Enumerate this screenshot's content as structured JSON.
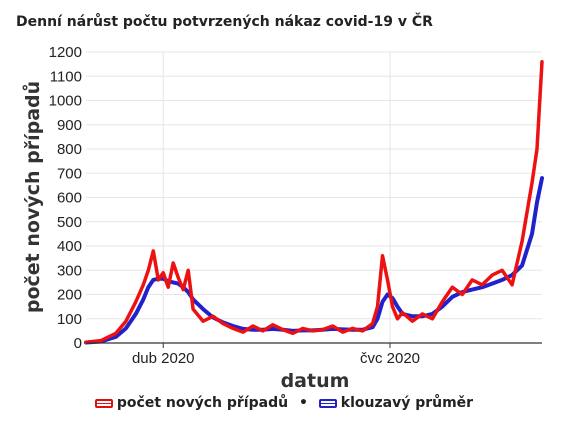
{
  "chart_data": {
    "type": "line",
    "title": "Denní nárůst počtu potvrzených nákaz covid-19 v ČR",
    "xlabel": "datum",
    "ylabel": "počet nových případů",
    "ylim": [
      0,
      1200
    ],
    "yticks": [
      0,
      100,
      200,
      300,
      400,
      500,
      600,
      700,
      800,
      900,
      1000,
      1100,
      1200
    ],
    "xticks": [
      {
        "date": "2020-04-01",
        "label": "dub 2020"
      },
      {
        "date": "2020-07-01",
        "label": "čvc 2020"
      }
    ],
    "xlim": [
      "2020-03-01",
      "2020-08-31"
    ],
    "grid": true,
    "legend_position": "bottom",
    "x": [
      "2020-03-01",
      "2020-03-07",
      "2020-03-13",
      "2020-03-17",
      "2020-03-21",
      "2020-03-24",
      "2020-03-26",
      "2020-03-28",
      "2020-03-30",
      "2020-04-01",
      "2020-04-03",
      "2020-04-05",
      "2020-04-07",
      "2020-04-09",
      "2020-04-11",
      "2020-04-13",
      "2020-04-17",
      "2020-04-21",
      "2020-04-25",
      "2020-04-29",
      "2020-05-03",
      "2020-05-07",
      "2020-05-11",
      "2020-05-15",
      "2020-05-19",
      "2020-05-23",
      "2020-05-27",
      "2020-05-31",
      "2020-06-04",
      "2020-06-08",
      "2020-06-12",
      "2020-06-16",
      "2020-06-20",
      "2020-06-24",
      "2020-06-26",
      "2020-06-28",
      "2020-06-30",
      "2020-07-02",
      "2020-07-04",
      "2020-07-06",
      "2020-07-10",
      "2020-07-14",
      "2020-07-18",
      "2020-07-22",
      "2020-07-26",
      "2020-07-30",
      "2020-08-03",
      "2020-08-07",
      "2020-08-11",
      "2020-08-15",
      "2020-08-19",
      "2020-08-23",
      "2020-08-27",
      "2020-08-29",
      "2020-08-31"
    ],
    "series": [
      {
        "name": "počet nových případů",
        "color": "#ee1111",
        "values": [
          3,
          10,
          40,
          90,
          170,
          240,
          300,
          380,
          260,
          290,
          230,
          330,
          270,
          220,
          300,
          140,
          90,
          110,
          80,
          60,
          45,
          70,
          50,
          75,
          55,
          40,
          60,
          50,
          55,
          70,
          45,
          60,
          50,
          80,
          150,
          360,
          260,
          150,
          100,
          125,
          90,
          120,
          100,
          170,
          230,
          200,
          260,
          240,
          280,
          300,
          240,
          420,
          660,
          800,
          1160
        ]
      },
      {
        "name": "klouzavý průměr",
        "color": "#2222cc",
        "values": [
          2,
          6,
          25,
          60,
          120,
          180,
          230,
          260,
          265,
          265,
          255,
          250,
          245,
          230,
          210,
          180,
          140,
          105,
          85,
          70,
          58,
          55,
          55,
          58,
          55,
          50,
          52,
          52,
          55,
          58,
          56,
          55,
          55,
          65,
          100,
          170,
          200,
          185,
          150,
          120,
          110,
          110,
          120,
          150,
          190,
          210,
          220,
          230,
          245,
          260,
          280,
          320,
          450,
          580,
          680
        ]
      }
    ]
  }
}
